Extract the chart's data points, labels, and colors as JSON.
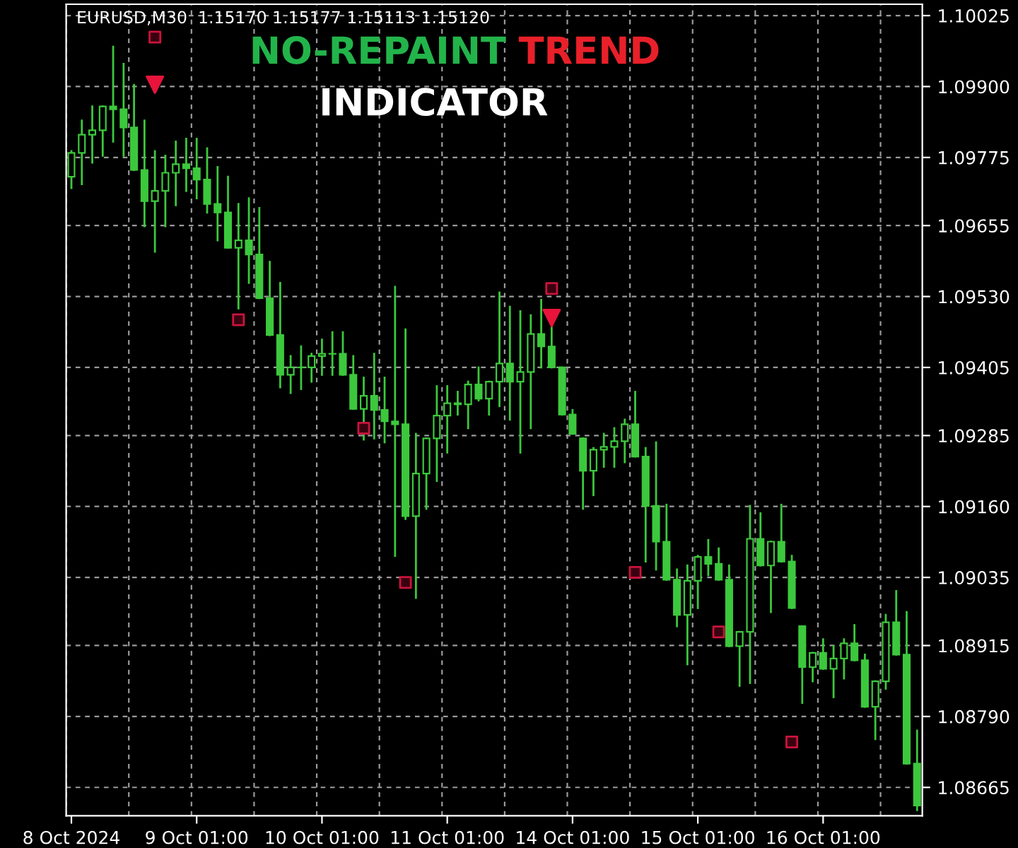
{
  "chart_data": {
    "type": "candlestick",
    "title": "NO-REPAINT TREND",
    "subtitle": "INDICATOR",
    "annotations": [
      "EURUSD,M30  1.15170 1.15177 1.15113 1.15120"
    ],
    "categories": [
      "8 Oct 2024",
      null,
      null,
      null,
      null,
      null,
      null,
      null,
      null,
      null,
      null,
      null,
      "9 Oct 01:00",
      null,
      null,
      null,
      null,
      null,
      null,
      null,
      null,
      null,
      null,
      null,
      "10 Oct 01:00",
      null,
      null,
      null,
      null,
      null,
      null,
      null,
      null,
      null,
      null,
      null,
      "11 Oct 01:00",
      null,
      null,
      null,
      null,
      null,
      null,
      null,
      null,
      null,
      null,
      null,
      "14 Oct 01:00",
      null,
      null,
      null,
      null,
      null,
      null,
      null,
      null,
      null,
      null,
      null,
      "15 Oct 01:00",
      null,
      null,
      null,
      null,
      null,
      null,
      null,
      null,
      null,
      null,
      null,
      "16 Oct 01:00",
      null,
      null,
      null,
      null,
      null,
      null,
      null,
      null,
      null
    ],
    "color": "#3cc83c",
    "ohlc": [
      [
        1.09741,
        1.09786,
        1.09721,
        1.09783
      ],
      [
        1.09783,
        1.0984,
        1.09728,
        1.09815
      ],
      [
        1.09815,
        1.09865,
        1.09766,
        1.09823
      ],
      [
        1.09823,
        1.09865,
        1.09778,
        1.09865
      ],
      [
        1.09865,
        1.0997,
        1.09803,
        1.0986
      ],
      [
        1.0986,
        1.0994,
        1.09778,
        1.09828
      ],
      [
        1.09828,
        1.09903,
        1.09753,
        1.09753
      ],
      [
        1.09753,
        1.0984,
        1.09654,
        1.09698
      ],
      [
        1.09698,
        1.09786,
        1.09609,
        1.09716
      ],
      [
        1.09716,
        1.09778,
        1.09654,
        1.09748
      ],
      [
        1.09748,
        1.09803,
        1.09691,
        1.09763
      ],
      [
        1.09763,
        1.09808,
        1.09716,
        1.09756
      ],
      [
        1.09756,
        1.09808,
        1.09703,
        1.09736
      ],
      [
        1.09736,
        1.09791,
        1.09678,
        1.09693
      ],
      [
        1.09693,
        1.09758,
        1.09629,
        1.09678
      ],
      [
        1.09678,
        1.09741,
        1.09616,
        1.09616
      ],
      [
        1.09616,
        1.09693,
        1.09509,
        1.09629
      ],
      [
        1.09629,
        1.09703,
        1.09554,
        1.09604
      ],
      [
        1.09604,
        1.09686,
        1.09527,
        1.09527
      ],
      [
        1.09527,
        1.09591,
        1.09462,
        1.09462
      ],
      [
        1.09462,
        1.09554,
        1.0937,
        1.09392
      ],
      [
        1.09392,
        1.09425,
        1.0936,
        1.09405
      ],
      [
        1.09405,
        1.09442,
        1.09367,
        1.09405
      ],
      [
        1.09405,
        1.09429,
        1.0938,
        1.09425
      ],
      [
        1.09425,
        1.09454,
        1.09392,
        1.09429
      ],
      [
        1.09429,
        1.09467,
        1.09392,
        1.09429
      ],
      [
        1.09429,
        1.09467,
        1.09392,
        1.09392
      ],
      [
        1.09392,
        1.09425,
        1.09332,
        1.09332
      ],
      [
        1.09332,
        1.09387,
        1.09278,
        1.09355
      ],
      [
        1.09355,
        1.09429,
        1.0928,
        1.0933
      ],
      [
        1.0933,
        1.09387,
        1.09273,
        1.0931
      ],
      [
        1.0931,
        1.09547,
        1.09073,
        1.09305
      ],
      [
        1.09305,
        1.09472,
        1.09138,
        1.09143
      ],
      [
        1.09143,
        1.09288,
        1.08999,
        1.09218
      ],
      [
        1.09218,
        1.0928,
        1.09156,
        1.0928
      ],
      [
        1.0928,
        1.09372,
        1.09205,
        1.0932
      ],
      [
        1.0932,
        1.09372,
        1.09255,
        1.09342
      ],
      [
        1.09342,
        1.09362,
        1.09322,
        1.0934
      ],
      [
        1.0934,
        1.0938,
        1.09298,
        1.09375
      ],
      [
        1.09375,
        1.09405,
        1.09347,
        1.0935
      ],
      [
        1.0935,
        1.0938,
        1.09322,
        1.0938
      ],
      [
        1.0938,
        1.09537,
        1.09337,
        1.09412
      ],
      [
        1.09412,
        1.09512,
        1.09313,
        1.0938
      ],
      [
        1.0938,
        1.09504,
        1.09255,
        1.09397
      ],
      [
        1.09397,
        1.09497,
        1.09298,
        1.09464
      ],
      [
        1.09464,
        1.09524,
        1.09405,
        1.09442
      ],
      [
        1.09442,
        1.09479,
        1.09405,
        1.09405
      ],
      [
        1.09405,
        1.09405,
        1.09322,
        1.09322
      ],
      [
        1.09322,
        1.0933,
        1.09288,
        1.09288
      ],
      [
        1.0928,
        1.0928,
        1.09156,
        1.09223
      ],
      [
        1.09223,
        1.09263,
        1.0918,
        1.0926
      ],
      [
        1.0926,
        1.09288,
        1.0923,
        1.09265
      ],
      [
        1.09265,
        1.09298,
        1.0923,
        1.09275
      ],
      [
        1.09275,
        1.09313,
        1.09238,
        1.09305
      ],
      [
        1.09305,
        1.09362,
        1.09248,
        1.09248
      ],
      [
        1.09248,
        1.09263,
        1.09063,
        1.09161
      ],
      [
        1.09161,
        1.09273,
        1.09049,
        1.09098
      ],
      [
        1.09098,
        1.09163,
        1.09031,
        1.09031
      ],
      [
        1.09031,
        1.09049,
        1.08949,
        1.08969
      ],
      [
        1.08969,
        1.09056,
        1.08882,
        1.09029
      ],
      [
        1.09029,
        1.09073,
        1.08981,
        1.09071
      ],
      [
        1.09071,
        1.09101,
        1.09039,
        1.09059
      ],
      [
        1.09059,
        1.09086,
        1.09031,
        1.09031
      ],
      [
        1.09031,
        1.09056,
        1.08914,
        1.08914
      ],
      [
        1.08914,
        1.08939,
        1.08844,
        1.08939
      ],
      [
        1.08939,
        1.09161,
        1.08849,
        1.09103
      ],
      [
        1.09103,
        1.09148,
        1.09056,
        1.09056
      ],
      [
        1.09056,
        1.09098,
        1.08974,
        1.09098
      ],
      [
        1.09098,
        1.09163,
        1.09063,
        1.09063
      ],
      [
        1.09063,
        1.09073,
        1.08981,
        1.08981
      ],
      [
        1.08949,
        1.08949,
        1.08814,
        1.08877
      ],
      [
        1.08877,
        1.08902,
        1.08852,
        1.08902
      ],
      [
        1.08902,
        1.08926,
        1.08874,
        1.08874
      ],
      [
        1.08874,
        1.08914,
        1.08824,
        1.08892
      ],
      [
        1.08892,
        1.08926,
        1.08857,
        1.08919
      ],
      [
        1.08919,
        1.08951,
        1.08889,
        1.08889
      ],
      [
        1.08889,
        1.08899,
        1.08807,
        1.08807
      ],
      [
        1.08807,
        1.08852,
        1.0875,
        1.08852
      ],
      [
        1.08852,
        1.08969,
        1.08839,
        1.08956
      ],
      [
        1.08956,
        1.09011,
        1.08899,
        1.08899
      ],
      [
        1.08899,
        1.08974,
        1.08707,
        1.08707
      ],
      [
        1.08707,
        1.08765,
        1.08625,
        1.08633
      ]
    ],
    "series": [
      {
        "type": "scatter",
        "marker": "square",
        "color": "#c8143c",
        "values": [
          null,
          null,
          null,
          null,
          null,
          null,
          null,
          null,
          1.09987,
          null,
          null,
          null,
          null,
          null,
          null,
          null,
          1.09489,
          null,
          null,
          null,
          null,
          null,
          null,
          null,
          null,
          null,
          null,
          null,
          1.09298,
          null,
          null,
          null,
          1.09026,
          null,
          null,
          null,
          null,
          null,
          null,
          null,
          null,
          null,
          null,
          null,
          null,
          null,
          1.09544,
          null,
          null,
          null,
          null,
          null,
          null,
          null,
          1.09044,
          null,
          null,
          null,
          null,
          null,
          null,
          null,
          1.08939,
          null,
          null,
          null,
          null,
          null,
          null,
          1.08745,
          null,
          null,
          null,
          null,
          null,
          null,
          null,
          null,
          null,
          null,
          null,
          null
        ]
      },
      {
        "type": "scatter",
        "marker": "triangle",
        "color": "#e8143c",
        "values": [
          null,
          null,
          null,
          null,
          null,
          null,
          null,
          null,
          1.09903,
          null,
          null,
          null,
          null,
          null,
          null,
          null,
          null,
          null,
          null,
          null,
          null,
          null,
          null,
          null,
          null,
          null,
          null,
          null,
          null,
          null,
          null,
          null,
          null,
          null,
          null,
          null,
          null,
          null,
          null,
          null,
          null,
          null,
          null,
          null,
          null,
          null,
          1.09492,
          null,
          null,
          null,
          null,
          null,
          null,
          null,
          null,
          null,
          null,
          null,
          null,
          null,
          null,
          null,
          null,
          null,
          null,
          null,
          null,
          null,
          null,
          null,
          null,
          null,
          null,
          null,
          null,
          null,
          null,
          null,
          null,
          null,
          null,
          null
        ]
      }
    ],
    "ylim": [
      1.08615,
      1.10045
    ],
    "yticks": [
      1.08665,
      {
        "value": 1.0879,
        "label": "1.08790"
      },
      1.08915,
      1.09035,
      {
        "value": 1.0916,
        "label": "1.09160"
      },
      1.09285,
      1.09405,
      {
        "value": 1.0953,
        "label": "1.09530"
      },
      1.09655,
      1.09775,
      {
        "value": 1.099,
        "label": "1.09900"
      },
      1.10025
    ],
    "grid": true,
    "legend": false
  }
}
